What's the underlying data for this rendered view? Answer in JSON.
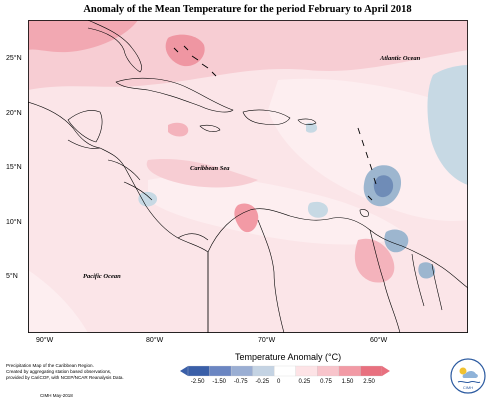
{
  "title": "Anomaly of the Mean Temperature for the period February to April 2018",
  "lat_ticks": [
    "25°N",
    "20°N",
    "15°N",
    "10°N",
    "5°N"
  ],
  "lon_ticks": [
    "90°W",
    "80°W",
    "70°W",
    "60°W"
  ],
  "labels": {
    "atlantic": "Atlantic Ocean",
    "caribbean": "Caribbean Sea",
    "pacific": "Pacific Ocean"
  },
  "legend": {
    "title": "Temperature Anomaly (°C)",
    "ticks": [
      "-2.50",
      "-1.50",
      "-0.75",
      "-0.25",
      "0",
      "0.25",
      "0.75",
      "1.50",
      "2.50"
    ],
    "colors": [
      "#3a5fa8",
      "#6b86c2",
      "#9aaed3",
      "#c4d3e3",
      "#ffffff",
      "#fde3e6",
      "#f8c4cb",
      "#f29aa5",
      "#e8707f"
    ]
  },
  "footnote": [
    "Precipitation Map of the Caribbean Region.",
    "Created by aggregating station based observations,",
    "provided by CariCOF, with NCEP/NCAR Reanalysis Data."
  ],
  "credit": "CIMH May-2018",
  "logo_text": "CIMH"
}
